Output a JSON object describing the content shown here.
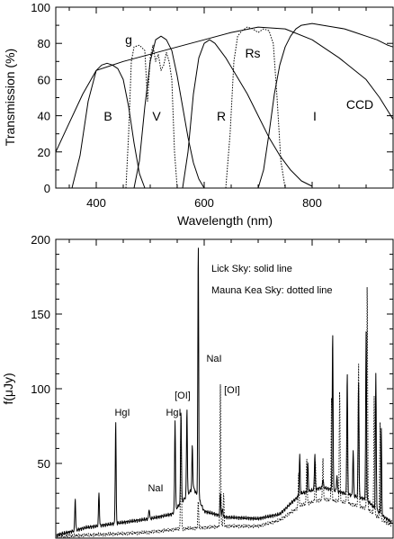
{
  "colors": {
    "ink": "#000000",
    "background": "#ffffff"
  },
  "chart_data": [
    {
      "type": "line",
      "title": "",
      "xlabel": "Wavelength (nm)",
      "ylabel": "Transmission (%)",
      "xlim": [
        325,
        950
      ],
      "ylim": [
        0,
        100
      ],
      "xticks": [
        400,
        600,
        800
      ],
      "yticks": [
        0,
        20,
        40,
        60,
        80,
        100
      ],
      "minor_x_step": 50,
      "minor_y_step": 10,
      "grid": false,
      "series": [
        {
          "name": "B",
          "style": "solid",
          "x": [
            355,
            370,
            385,
            400,
            410,
            420,
            430,
            440,
            450,
            460,
            470,
            480,
            490
          ],
          "y": [
            0,
            18,
            48,
            65,
            68,
            69,
            68,
            66,
            60,
            45,
            25,
            8,
            0
          ]
        },
        {
          "name": "V",
          "style": "solid",
          "x": [
            470,
            480,
            490,
            500,
            510,
            520,
            530,
            540,
            550,
            560,
            570,
            580,
            590,
            600
          ],
          "y": [
            0,
            15,
            45,
            70,
            82,
            84,
            82,
            76,
            62,
            45,
            28,
            14,
            5,
            0
          ]
        },
        {
          "name": "R",
          "style": "solid",
          "x": [
            560,
            570,
            580,
            590,
            600,
            610,
            620,
            640,
            660,
            680,
            700,
            720,
            740,
            760,
            780,
            800
          ],
          "y": [
            0,
            20,
            52,
            72,
            80,
            82,
            80,
            72,
            62,
            52,
            40,
            28,
            18,
            10,
            4,
            1
          ]
        },
        {
          "name": "I",
          "style": "solid",
          "x": [
            700,
            710,
            720,
            730,
            740,
            750,
            760,
            770,
            780,
            800,
            820,
            840,
            860,
            880,
            900,
            920,
            940,
            950
          ],
          "y": [
            0,
            10,
            30,
            52,
            68,
            78,
            84,
            88,
            90,
            91,
            90,
            89,
            88,
            86,
            84,
            82,
            79,
            78
          ]
        },
        {
          "name": "g",
          "style": "dotted",
          "x": [
            455,
            460,
            465,
            470,
            480,
            490,
            495,
            500,
            505,
            510,
            515,
            520,
            525,
            530,
            535,
            540,
            545,
            550
          ],
          "y": [
            0,
            30,
            70,
            78,
            79,
            76,
            48,
            72,
            79,
            70,
            74,
            65,
            68,
            75,
            70,
            60,
            20,
            0
          ]
        },
        {
          "name": "Rs",
          "style": "dotted",
          "x": [
            640,
            648,
            655,
            662,
            670,
            680,
            690,
            700,
            710,
            720,
            728,
            735,
            742,
            750
          ],
          "y": [
            0,
            30,
            70,
            84,
            87,
            89,
            88,
            86,
            88,
            87,
            80,
            50,
            15,
            0
          ]
        },
        {
          "name": "CCD",
          "style": "solid",
          "x": [
            325,
            350,
            375,
            400,
            450,
            500,
            550,
            600,
            650,
            700,
            750,
            800,
            850,
            900,
            925,
            950
          ],
          "y": [
            20,
            36,
            52,
            65,
            70,
            74,
            78,
            82,
            86,
            89,
            88,
            82,
            72,
            60,
            50,
            38
          ]
        }
      ],
      "band_labels": [
        "B",
        "V",
        "R",
        "I",
        "CCD",
        "g",
        "Rs"
      ]
    },
    {
      "type": "line",
      "title": "",
      "xlabel": "",
      "ylabel": "f(μJy)",
      "xlim": [
        325,
        950
      ],
      "ylim": [
        0,
        200
      ],
      "yticks": [
        0,
        50,
        100,
        150,
        200
      ],
      "minor_y_step": 10,
      "minor_x_step": 50,
      "grid": false,
      "legend_notes": [
        "Lick Sky: solid line",
        "Mauna Kea Sky: dotted line"
      ],
      "emission_labels": [
        "HgI",
        "NaI",
        "HgI",
        "[OI]",
        "NaI",
        "[OI]"
      ],
      "series": [
        {
          "name": "Lick Sky",
          "style": "solid",
          "continuum": [
            [
              325,
              2
            ],
            [
              350,
              4
            ],
            [
              380,
              7
            ],
            [
              420,
              9
            ],
            [
              460,
              11
            ],
            [
              500,
              13
            ],
            [
              540,
              16
            ],
            [
              580,
              34
            ],
            [
              600,
              18
            ],
            [
              640,
              14
            ],
            [
              700,
              13
            ],
            [
              740,
              16
            ],
            [
              780,
              30
            ],
            [
              820,
              34
            ],
            [
              860,
              30
            ],
            [
              900,
              26
            ],
            [
              930,
              15
            ],
            [
              950,
              10
            ]
          ],
          "lines": [
            [
              361,
              27
            ],
            [
              405,
              31
            ],
            [
              436,
              79
            ],
            [
              498,
              20
            ],
            [
              546,
              79
            ],
            [
              557,
              87
            ],
            [
              568,
              88
            ],
            [
              578,
              62
            ],
            [
              589,
              200
            ],
            [
              630,
              30
            ],
            [
              634,
              20
            ],
            [
              777,
              55
            ],
            [
              792,
              50
            ],
            [
              805,
              57
            ],
            [
              820,
              40
            ],
            [
              838,
              140
            ],
            [
              846,
              42
            ],
            [
              865,
              112
            ],
            [
              876,
              58
            ],
            [
              886,
              107
            ],
            [
              900,
              138
            ],
            [
              918,
              110
            ],
            [
              928,
              75
            ]
          ]
        },
        {
          "name": "Mauna Kea Sky",
          "style": "dotted",
          "continuum": [
            [
              325,
              1
            ],
            [
              380,
              2
            ],
            [
              450,
              3
            ],
            [
              500,
              4
            ],
            [
              550,
              6
            ],
            [
              600,
              7
            ],
            [
              640,
              8
            ],
            [
              700,
              8
            ],
            [
              740,
              12
            ],
            [
              780,
              22
            ],
            [
              820,
              26
            ],
            [
              860,
              24
            ],
            [
              900,
              20
            ],
            [
              930,
              12
            ],
            [
              950,
              8
            ]
          ],
          "lines": [
            [
              557,
              87
            ],
            [
              589,
              25
            ],
            [
              630,
              103
            ],
            [
              636,
              30
            ],
            [
              775,
              45
            ],
            [
              790,
              55
            ],
            [
              806,
              52
            ],
            [
              820,
              55
            ],
            [
              836,
              95
            ],
            [
              851,
              100
            ],
            [
              865,
              90
            ],
            [
              886,
              120
            ],
            [
              902,
              173
            ],
            [
              915,
              95
            ],
            [
              926,
              80
            ]
          ]
        }
      ]
    }
  ]
}
